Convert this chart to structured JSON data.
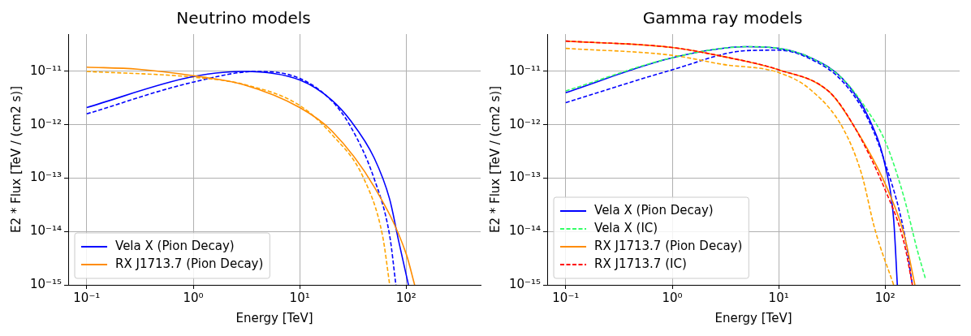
{
  "chart_data": [
    {
      "type": "line",
      "title": "Neutrino models",
      "xlabel": "Energy [TeV]",
      "ylabel": "E2 * Flux [TeV / (cm2 s)]",
      "log": "xy",
      "grid": true,
      "legend": "bottom left",
      "xlim": [
        0.067,
        500
      ],
      "xticks": [
        {
          "value": 0.1,
          "label": "10⁻¹"
        },
        {
          "value": 1,
          "label": "10⁰"
        },
        {
          "value": 10,
          "label": "10¹"
        },
        {
          "value": 100,
          "label": "10²"
        }
      ],
      "ylim": [
        1e-15,
        5e-11
      ],
      "yticks": [
        {
          "value": 1e-15,
          "label": "10⁻¹⁵"
        },
        {
          "value": 1e-14,
          "label": "10⁻¹⁴"
        },
        {
          "value": 1e-13,
          "label": "10⁻¹³"
        },
        {
          "value": 1e-12,
          "label": "10⁻¹²"
        },
        {
          "value": 1e-11,
          "label": "10⁻¹¹"
        }
      ],
      "series": [
        {
          "color": "#0000ff",
          "line_style": "dashed",
          "x": [
            0.1,
            1,
            4,
            10,
            20,
            30,
            50,
            70,
            80
          ],
          "values": [
            1.6e-12,
            6.3e-12,
            1e-11,
            7.4e-12,
            2.8e-12,
            9.3e-13,
            9.8e-14,
            8.3e-15,
            1e-15
          ]
        },
        {
          "color": "#ffa500",
          "line_style": "dashed",
          "x": [
            0.1,
            1,
            3,
            10,
            20,
            40,
            60,
            70
          ],
          "values": [
            1e-11,
            7.8e-12,
            5.7e-12,
            2.3e-12,
            6.6e-13,
            9.8e-14,
            8.3e-15,
            1e-15
          ]
        },
        {
          "name": "Vela X (Pion Decay)",
          "color": "#0000ff",
          "line_style": "solid",
          "x": [
            0.1,
            1,
            3,
            10,
            20,
            30,
            50,
            70,
            85,
            105
          ],
          "values": [
            2.1e-12,
            8e-12,
            1e-11,
            6.9e-12,
            2.9e-12,
            1.2e-12,
            2.4e-13,
            4e-14,
            6.6e-15,
            1e-15
          ]
        },
        {
          "name": "RX J1713.7 (Pion Decay)",
          "color": "#ff8c00",
          "line_style": "solid",
          "x": [
            0.1,
            0.3,
            1,
            3,
            10,
            20,
            50,
            100,
            120
          ],
          "values": [
            1.2e-11,
            1.1e-11,
            8.3e-12,
            5.6e-12,
            2.1e-12,
            7.7e-13,
            6.9e-14,
            3.8e-15,
            1e-15
          ]
        }
      ]
    },
    {
      "type": "line",
      "title": "Gamma ray models",
      "xlabel": "Energy [TeV]",
      "ylabel": "E2 * Flux [TeV / (cm2 s)]",
      "log": "xy",
      "grid": true,
      "legend": "bottom left",
      "xlim": [
        0.067,
        500
      ],
      "xticks": [
        {
          "value": 0.1,
          "label": "10⁻¹"
        },
        {
          "value": 1,
          "label": "10⁰"
        },
        {
          "value": 10,
          "label": "10¹"
        },
        {
          "value": 100,
          "label": "10²"
        }
      ],
      "ylim": [
        1e-15,
        5e-11
      ],
      "yticks": [
        {
          "value": 1e-15,
          "label": "10⁻¹⁵"
        },
        {
          "value": 1e-14,
          "label": "10⁻¹⁴"
        },
        {
          "value": 1e-13,
          "label": "10⁻¹³"
        },
        {
          "value": 1e-12,
          "label": "10⁻¹²"
        },
        {
          "value": 1e-11,
          "label": "10⁻¹¹"
        }
      ],
      "series": [
        {
          "color": "#0000ff",
          "line_style": "dashed",
          "x": [
            0.1,
            1,
            5,
            10,
            20,
            40,
            70,
            100,
            150,
            180
          ],
          "values": [
            2.6e-12,
            1.07e-11,
            2.45e-11,
            2.5e-11,
            1.7e-11,
            6.4e-12,
            1.2e-12,
            1.9e-13,
            1e-14,
            1e-15
          ]
        },
        {
          "color": "#ffa500",
          "line_style": "dashed",
          "x": [
            0.1,
            1,
            3,
            10,
            20,
            40,
            60,
            80,
            120
          ],
          "values": [
            2.7e-11,
            2e-11,
            1.35e-11,
            9.5e-12,
            4.5e-12,
            8.7e-13,
            1.2e-13,
            1.1e-14,
            1e-15
          ]
        },
        {
          "name": "Vela X (Pion Decay)",
          "color": "#0000ff",
          "line_style": "solid",
          "x": [
            0.1,
            1,
            5,
            10,
            20,
            40,
            70,
            100,
            120,
            130
          ],
          "values": [
            4e-12,
            1.8e-11,
            2.9e-11,
            2.7e-11,
            1.8e-11,
            7.2e-12,
            1.35e-12,
            1.7e-13,
            1.7e-14,
            1e-15
          ]
        },
        {
          "name": "Vela X (IC)",
          "color": "#33ff66",
          "line_style": "dashed",
          "x": [
            0.1,
            1,
            5,
            10,
            20,
            40,
            70,
            100,
            150,
            200,
            240
          ],
          "values": [
            4.3e-12,
            1.8e-11,
            2.9e-11,
            2.7e-11,
            1.8e-11,
            7.2e-12,
            1.7e-12,
            4.9e-13,
            4.4e-14,
            4.5e-15,
            1.26e-15
          ]
        },
        {
          "name": "RX J1713.7 (Pion Decay)",
          "color": "#ff8c00",
          "line_style": "solid",
          "x": [
            0.1,
            1,
            3,
            10,
            30,
            50,
            100,
            150,
            190
          ],
          "values": [
            3.7e-11,
            2.8e-11,
            1.9e-11,
            1.07e-11,
            4.1e-12,
            1e-12,
            7.8e-14,
            8.9e-15,
            1e-15
          ]
        },
        {
          "name": "RX J1713.7 (IC)",
          "color": "#ff0000",
          "line_style": "dashed",
          "x": [
            0.1,
            1,
            3,
            10,
            30,
            50,
            100,
            150,
            180
          ],
          "values": [
            3.7e-11,
            2.8e-11,
            1.9e-11,
            1.07e-11,
            4.1e-12,
            1e-12,
            6e-14,
            6.3e-15,
            1e-15
          ]
        }
      ]
    }
  ]
}
